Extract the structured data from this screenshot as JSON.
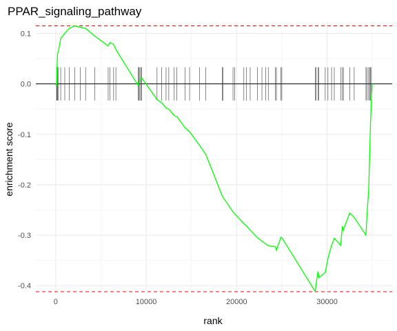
{
  "chart_data": {
    "type": "line",
    "title": "PPAR_signaling_pathway",
    "xlabel": "rank",
    "ylabel": "enrichment score",
    "xlim": [
      -2200,
      37200
    ],
    "ylim": [
      -0.4175,
      0.1225
    ],
    "x_ticks": [
      0,
      10000,
      20000,
      30000
    ],
    "x_tick_labels": [
      "0",
      "10000",
      "20000",
      "30000"
    ],
    "y_ticks": [
      0.1,
      0.0,
      -0.1,
      -0.2,
      -0.3,
      -0.4
    ],
    "y_tick_labels": [
      "0.1",
      "0.0",
      "-0.1",
      "-0.2",
      "-0.3",
      "-0.4"
    ],
    "grid": true,
    "legend": "none",
    "colors": {
      "curve": "#00ff00",
      "max_line": "#ff0000",
      "baseline": "#000000",
      "hits": "#333333",
      "grid": "#ebebeb"
    },
    "reference_lines": [
      {
        "label": "max enrichment",
        "y": 0.115
      },
      {
        "label": "min enrichment",
        "y": -0.412
      }
    ],
    "hits": [
      100,
      150,
      200,
      300,
      550,
      1000,
      1500,
      2100,
      2700,
      3300,
      4300,
      5800,
      6000,
      6400,
      6650,
      9100,
      9200,
      9300,
      9400,
      9500,
      11200,
      11700,
      12200,
      12500,
      13100,
      13400,
      14300,
      14800,
      15900,
      16600,
      18400,
      18500,
      19600,
      19800,
      20800,
      21100,
      21500,
      22300,
      22800,
      23200,
      23500,
      24300,
      24400,
      24900,
      25000,
      28700,
      28800,
      29000,
      29100,
      29800,
      30100,
      30500,
      30800,
      31500,
      31700,
      31800,
      32500,
      33000,
      34300,
      34400,
      34600,
      34700,
      34800,
      34900
    ],
    "x": [
      0,
      100,
      150,
      200,
      300,
      550,
      1000,
      1500,
      2100,
      2700,
      3300,
      4300,
      5800,
      6000,
      6400,
      6650,
      9100,
      9200,
      9300,
      9400,
      9500,
      11200,
      11700,
      12200,
      12500,
      13100,
      13400,
      14300,
      14800,
      15900,
      16600,
      18400,
      18500,
      19600,
      19800,
      20800,
      21100,
      21500,
      22300,
      22800,
      23200,
      23500,
      24300,
      24400,
      24900,
      25000,
      28700,
      28800,
      29000,
      29100,
      29800,
      30100,
      30500,
      30800,
      31500,
      31700,
      31800,
      32500,
      33000,
      34300,
      34400,
      34600,
      34700,
      34800,
      34900,
      35000
    ],
    "y": [
      0.0,
      -0.005,
      0.035,
      0.06,
      0.065,
      0.09,
      0.1,
      0.11,
      0.115,
      0.112,
      0.11,
      0.095,
      0.075,
      0.082,
      0.078,
      0.068,
      -0.003,
      0.006,
      0.005,
      0.01,
      0.012,
      -0.031,
      -0.037,
      -0.048,
      -0.05,
      -0.063,
      -0.065,
      -0.087,
      -0.095,
      -0.122,
      -0.14,
      -0.222,
      -0.225,
      -0.254,
      -0.258,
      -0.277,
      -0.282,
      -0.29,
      -0.305,
      -0.312,
      -0.317,
      -0.321,
      -0.323,
      -0.33,
      -0.304,
      -0.305,
      -0.412,
      -0.395,
      -0.372,
      -0.384,
      -0.374,
      -0.346,
      -0.32,
      -0.306,
      -0.32,
      -0.282,
      -0.29,
      -0.256,
      -0.265,
      -0.3,
      -0.265,
      -0.21,
      -0.15,
      -0.08,
      -0.03,
      0.0
    ]
  }
}
